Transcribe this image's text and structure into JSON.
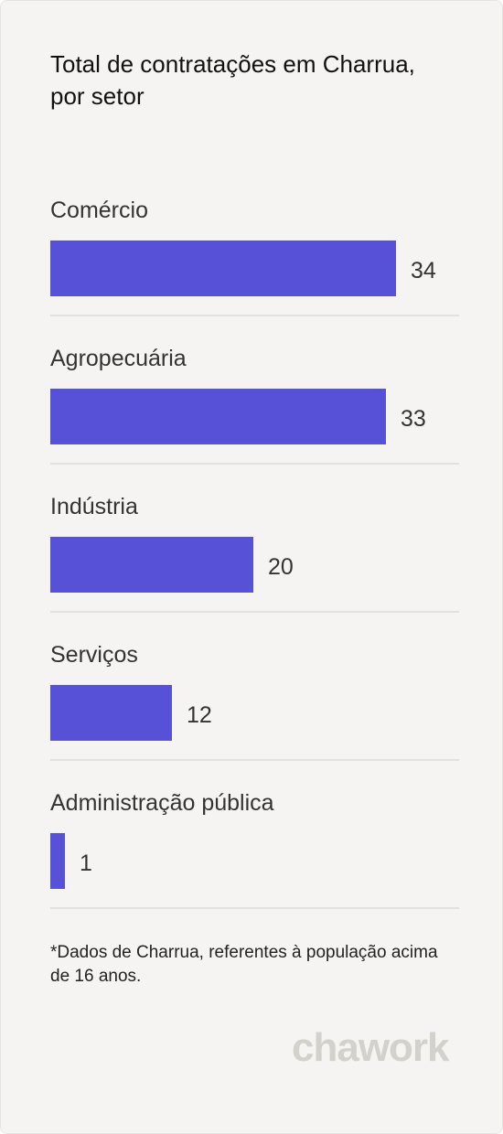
{
  "colors": {
    "bar": "#5751d8",
    "background": "#f5f4f2",
    "logo": "#d3d1cc"
  },
  "chart_data": {
    "type": "bar",
    "orientation": "horizontal",
    "title": "Total de contratações em Charrua,\npor setor",
    "categories": [
      "Comércio",
      "Agropecuária",
      "Indústria",
      "Serviços",
      "Administração pública"
    ],
    "values": [
      34,
      33,
      20,
      12,
      1
    ],
    "value_labels": [
      "34",
      "33",
      "20",
      "12",
      "1"
    ],
    "xlim": [
      0,
      40
    ],
    "grid": false,
    "legend": "none"
  },
  "footnote": "*Dados de Charrua, referentes à população acima de 16 anos.",
  "brand": {
    "logo_text": "chawork"
  }
}
